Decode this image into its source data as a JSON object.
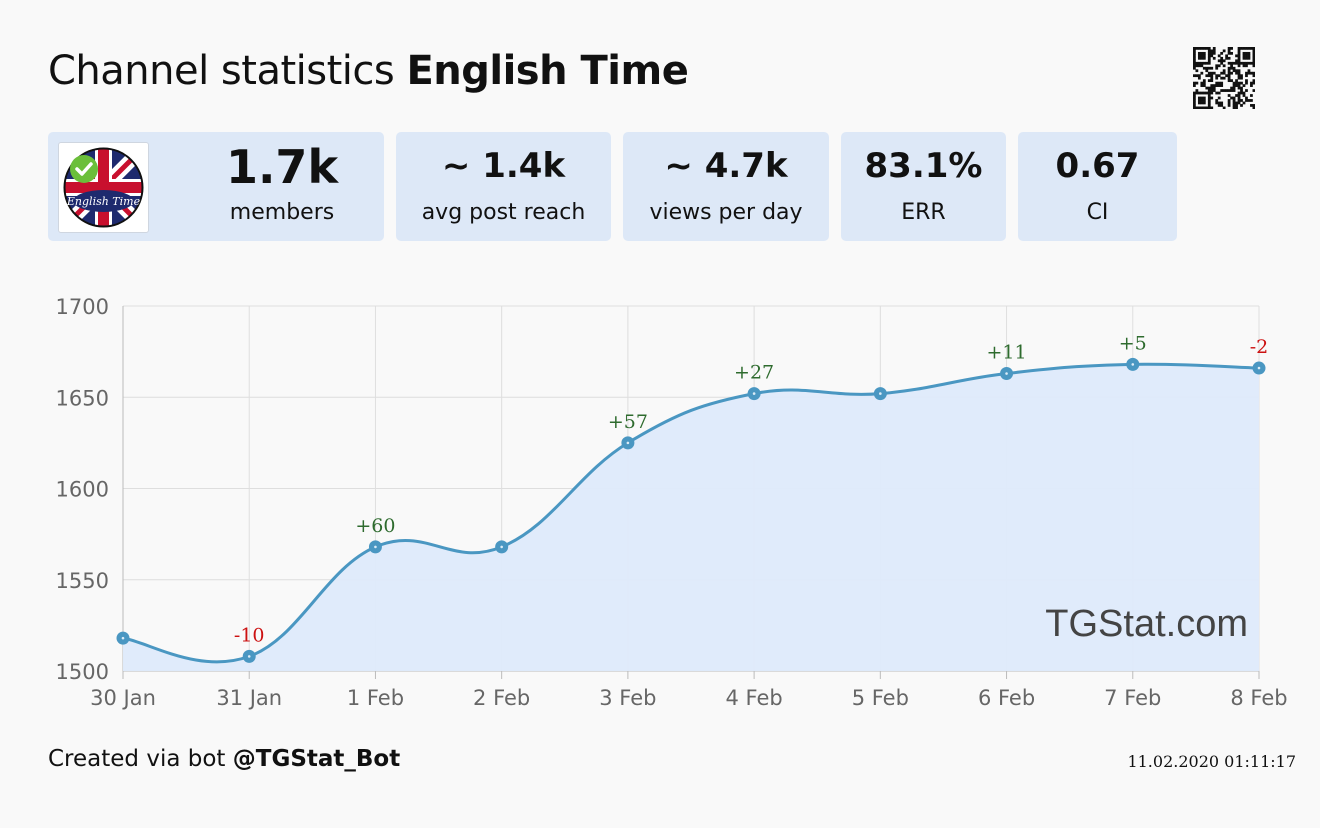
{
  "header": {
    "title_prefix": "Channel statistics",
    "channel_name": "English Time"
  },
  "avatar": {
    "text": "English Time",
    "icon": "verified-check-icon"
  },
  "stats": [
    {
      "value": "1.7k",
      "label": "members"
    },
    {
      "value": "~ 1.4k",
      "label": "avg post reach"
    },
    {
      "value": "~ 4.7k",
      "label": "views per day"
    },
    {
      "value": "83.1%",
      "label": "ERR"
    },
    {
      "value": "0.67",
      "label": "CI"
    }
  ],
  "chart_data": {
    "type": "area",
    "categories": [
      "30 Jan",
      "31 Jan",
      "1 Feb",
      "2 Feb",
      "3 Feb",
      "4 Feb",
      "5 Feb",
      "6 Feb",
      "7 Feb",
      "8 Feb"
    ],
    "values": [
      1518,
      1508,
      1568,
      1568,
      1625,
      1652,
      1652,
      1663,
      1668,
      1666
    ],
    "annotations": [
      {
        "index": 1,
        "text": "-10",
        "color": "#cc1111"
      },
      {
        "index": 2,
        "text": "+60",
        "color": "#2e6b2e"
      },
      {
        "index": 4,
        "text": "+57",
        "color": "#2e6b2e"
      },
      {
        "index": 5,
        "text": "+27",
        "color": "#2e6b2e"
      },
      {
        "index": 7,
        "text": "+11",
        "color": "#2e6b2e"
      },
      {
        "index": 8,
        "text": "+5",
        "color": "#2e6b2e"
      },
      {
        "index": 9,
        "text": "-2",
        "color": "#cc1111"
      }
    ],
    "yticks": [
      1500,
      1550,
      1600,
      1650,
      1700
    ],
    "ylim": [
      1500,
      1700
    ],
    "grid": true,
    "watermark": "TGStat.com",
    "line_color": "#4a97c2",
    "fill_color": "#deeafb"
  },
  "footer": {
    "created_prefix": "Created via bot",
    "bot_name": "@TGStat_Bot",
    "timestamp": "11.02.2020 01:11:17"
  }
}
